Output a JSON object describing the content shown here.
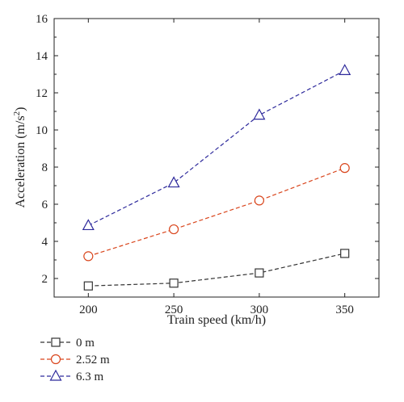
{
  "chart_data": {
    "type": "line",
    "title": "",
    "xlabel": "Train speed (km/h)",
    "ylabel": "Acceleration (m/s",
    "ylabel_sup": "2",
    "ylabel_close": ")",
    "x": [
      200,
      250,
      300,
      350
    ],
    "xticks": [
      "200",
      "250",
      "300",
      "350"
    ],
    "yticks": [
      "2",
      "4",
      "6",
      "8",
      "10",
      "12",
      "14",
      "16"
    ],
    "xlim": [
      180,
      370
    ],
    "ylim": [
      1,
      16
    ],
    "grid": false,
    "legend_position": "bottom-left",
    "series": [
      {
        "name": "0 m",
        "values": [
          1.6,
          1.75,
          2.3,
          3.35
        ],
        "color": "#333333",
        "marker": "square"
      },
      {
        "name": "2.52 m",
        "values": [
          3.2,
          4.65,
          6.2,
          7.95
        ],
        "color": "#d9451c",
        "marker": "circle"
      },
      {
        "name": "6.3 m",
        "values": [
          4.85,
          7.15,
          10.8,
          13.2
        ],
        "color": "#2e2a9c",
        "marker": "triangle"
      }
    ]
  }
}
